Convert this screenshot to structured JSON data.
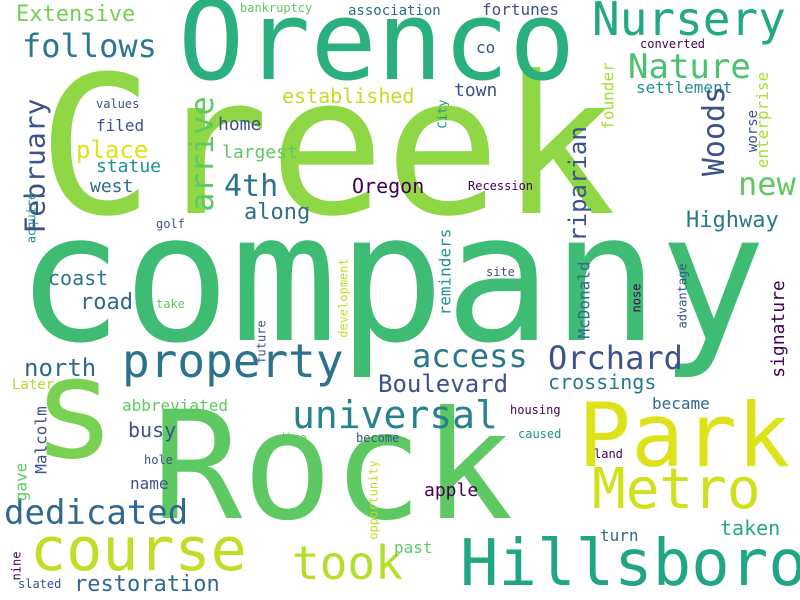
{
  "background": "#ffffff",
  "palette": {
    "purple": "#440154",
    "indigo": "#3b528b",
    "blue": "#31688e",
    "teal": "#21918c",
    "green": "#2ab07f",
    "mint": "#5ec962",
    "lime": "#addc30",
    "yellow": "#dde318"
  },
  "words": {
    "creek": "Creek",
    "company": "company",
    "s": "s",
    "rock": "Rock",
    "orenco": "Orenco",
    "park": "Park",
    "hillsboro": "Hillsboro",
    "metro": "Metro",
    "course": "course",
    "nursery": "Nursery",
    "property": "property",
    "took": "took",
    "universal": "universal",
    "dedicated": "dedicated",
    "nature": "Nature",
    "access": "access",
    "orchard": "Orchard",
    "woods": "Woods",
    "new": "new",
    "follows": "follows",
    "arrive": "arrive",
    "fourth": "4th",
    "february": "February",
    "boulevard": "Boulevard",
    "extensive": "Extensive",
    "riparian": "riparian",
    "along": "along",
    "highway": "Highway",
    "restoration": "restoration",
    "place": "place",
    "north": "north",
    "oregon": "Oregon",
    "established": "established",
    "crossings": "crossings",
    "taken": "taken",
    "signature": "signature",
    "busy": "busy",
    "road": "road",
    "coast": "coast",
    "home": "home",
    "west": "west",
    "largest": "largest",
    "statue": "statue",
    "settlement": "settlement",
    "town": "town",
    "enterprise": "enterprise",
    "founder": "founder",
    "reminders": "reminders",
    "mcdonald": "McDonald",
    "malcolm": "Malcolm",
    "abbreviated": "abbreviated",
    "became": "became",
    "fortunes": "fortunes",
    "co": "co",
    "association": "association",
    "apple": "apple",
    "name": "name",
    "gave": "gave",
    "filed": "filed",
    "past": "past",
    "turn": "turn",
    "worse": "worse",
    "later": "Later",
    "converted": "converted",
    "values": "values",
    "recession": "Recession",
    "housing": "housing",
    "caused": "caused",
    "land": "land",
    "hole": "hole",
    "site": "site",
    "take": "take",
    "dive": "dive",
    "become": "become",
    "golf": "golf",
    "city": "City",
    "acquire": "acquire",
    "bankruptcy": "bankruptcy",
    "future": "future",
    "development": "development",
    "opportunity": "opportunity",
    "advantage": "advantage",
    "nose": "nose",
    "nine": "nine",
    "slated": "slated"
  }
}
